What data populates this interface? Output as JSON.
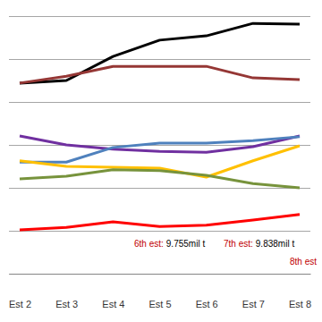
{
  "chart_data": {
    "type": "line",
    "categories": [
      "Est 2",
      "Est 3",
      "Est 4",
      "Est 5",
      "Est 6",
      "Est 7",
      "Est 8"
    ],
    "series": [
      {
        "color": "#000000",
        "values": [
          4.44,
          4.5,
          5.06,
          5.44,
          5.54,
          5.83,
          5.81
        ]
      },
      {
        "color": "#953735",
        "values": [
          4.44,
          4.6,
          4.83,
          4.83,
          4.83,
          4.56,
          4.52
        ]
      },
      {
        "color": "#7030a0",
        "values": [
          3.21,
          3.0,
          2.9,
          2.85,
          2.83,
          2.96,
          3.21
        ]
      },
      {
        "color": "#4f81bd",
        "values": [
          2.6,
          2.6,
          2.94,
          3.04,
          3.04,
          3.1,
          3.19
        ]
      },
      {
        "color": "#ffc000",
        "values": [
          2.63,
          2.5,
          2.48,
          2.46,
          2.25,
          2.63,
          2.98
        ]
      },
      {
        "color": "#77933c",
        "values": [
          2.21,
          2.27,
          2.42,
          2.4,
          2.29,
          2.1,
          2.0
        ]
      },
      {
        "color": "#ff0000",
        "values": [
          1.02,
          1.08,
          1.21,
          1.1,
          1.13,
          1.25,
          1.38
        ]
      }
    ],
    "ylim": [
      0,
      6
    ],
    "yticks": [
      0,
      1,
      2,
      3,
      4,
      5,
      6
    ],
    "grid": true,
    "tick_labels": "x",
    "annotations": [
      {
        "label": "6th est:",
        "text": "9.755mil t"
      },
      {
        "label": "7th est:",
        "text": "9.838mil t"
      },
      {
        "label": "8th est"
      }
    ]
  }
}
